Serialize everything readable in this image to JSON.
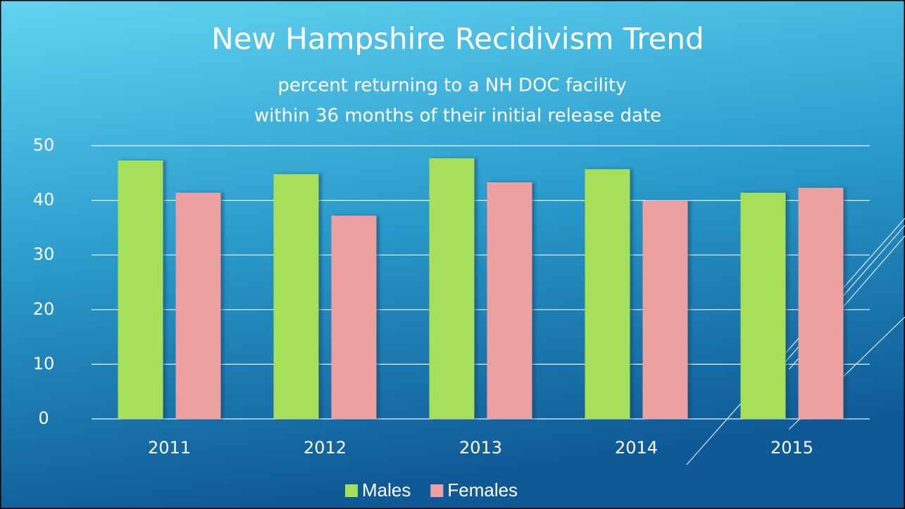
{
  "chart_data": {
    "type": "bar",
    "title": "New Hampshire Recidivism Trend",
    "subtitle": [
      "percent returning to a NH DOC facility",
      "within 36 months of their initial release date"
    ],
    "categories": [
      "2011",
      "2012",
      "2013",
      "2014",
      "2015"
    ],
    "series": [
      {
        "name": "Males",
        "color": "#a6e05a",
        "values": [
          47.3,
          44.8,
          47.7,
          45.7,
          41.4
        ]
      },
      {
        "name": "Females",
        "color": "#eda0a0",
        "values": [
          41.4,
          37.2,
          43.3,
          39.9,
          42.3
        ]
      }
    ],
    "ylim": [
      0,
      50
    ],
    "yticks": [
      0,
      10,
      20,
      30,
      40,
      50
    ],
    "grid": true,
    "legend": "bottom"
  }
}
